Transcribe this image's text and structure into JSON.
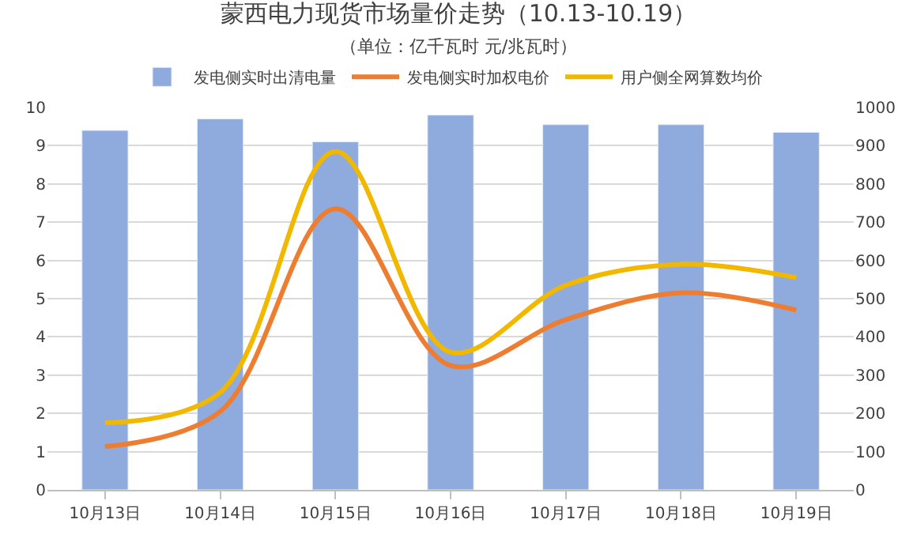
{
  "chart_data": {
    "type": "bar",
    "title": "蒙西电力现货市场量价走势（10.13-10.19）",
    "subtitle": "（单位：亿千瓦时 元/兆瓦时）",
    "categories": [
      "10月13日",
      "10月14日",
      "10月15日",
      "10月16日",
      "10月17日",
      "10月18日",
      "10月19日"
    ],
    "series": [
      {
        "name": "发电侧实时出清电量",
        "color": "#8faadc",
        "values": [
          9.4,
          9.7,
          9.1,
          9.8,
          9.55,
          9.55,
          9.35
        ]
      },
      {
        "name": "发电侧实时加权电价",
        "type": "line",
        "axis": "y2",
        "color": "#ed7d31",
        "values": [
          113,
          205,
          735,
          325,
          445,
          515,
          470
        ]
      },
      {
        "name": "用户侧全网算数均价",
        "type": "line",
        "axis": "y2",
        "color": "#f2b800",
        "values": [
          175,
          255,
          885,
          360,
          535,
          590,
          555
        ]
      }
    ],
    "ylim": [
      0,
      10
    ],
    "yticks": [
      0,
      1,
      2,
      3,
      4,
      5,
      6,
      7,
      8,
      9,
      10
    ],
    "y2lim": [
      0,
      1000
    ],
    "y2ticks": [
      0,
      100,
      200,
      300,
      400,
      500,
      600,
      700,
      800,
      900,
      1000
    ],
    "grid": "y",
    "legend": "top",
    "marker": "none",
    "line_style": "solid"
  }
}
